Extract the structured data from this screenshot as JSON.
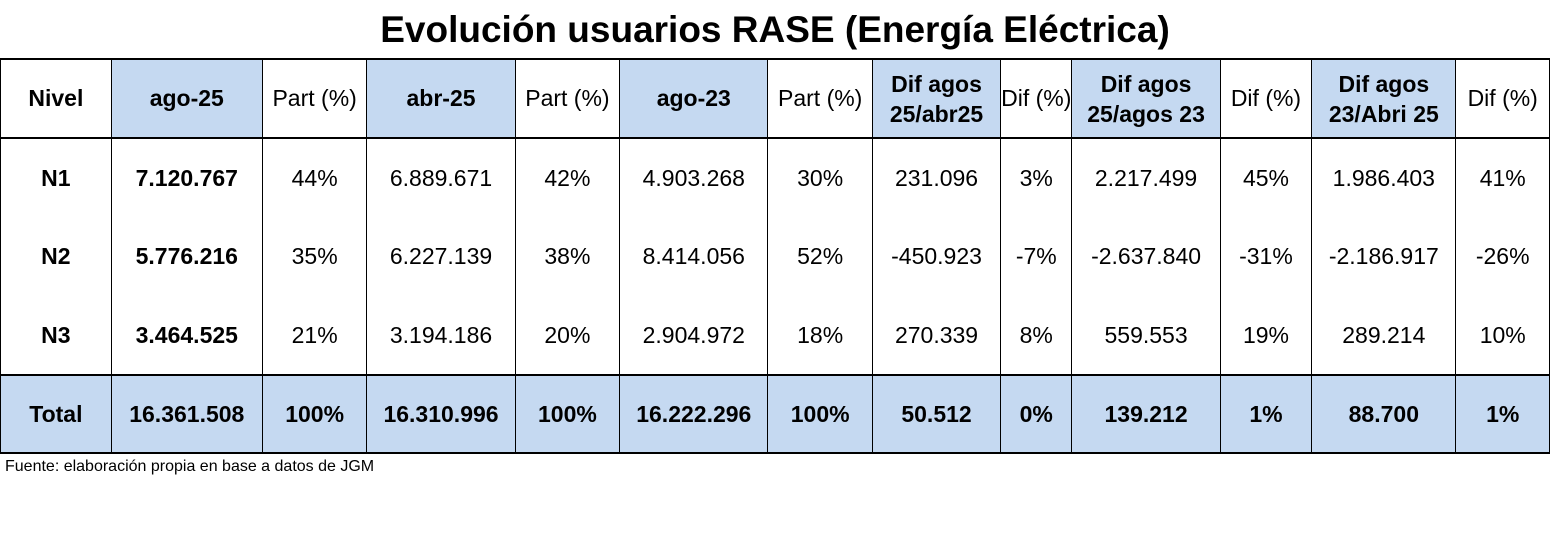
{
  "title": "Evolución usuarios RASE (Energía Eléctrica)",
  "source": "Fuente: elaboración propia en base a datos de JGM",
  "colors": {
    "highlight": "#c5d9f1"
  },
  "chart_data": {
    "type": "table",
    "title": "Evolución usuarios RASE (Energía Eléctrica)",
    "columns": [
      {
        "line1": "Nivel",
        "line2": ""
      },
      {
        "line1": "ago-25",
        "line2": ""
      },
      {
        "line1": "Part (%)",
        "line2": ""
      },
      {
        "line1": "abr-25",
        "line2": ""
      },
      {
        "line1": "Part (%)",
        "line2": ""
      },
      {
        "line1": "ago-23",
        "line2": ""
      },
      {
        "line1": "Part (%)",
        "line2": ""
      },
      {
        "line1": "Dif  agos",
        "line2": "25/abr25"
      },
      {
        "line1": "Dif  (%)",
        "line2": ""
      },
      {
        "line1": "Dif  agos",
        "line2": "25/agos 23"
      },
      {
        "line1": "Dif  (%)",
        "line2": ""
      },
      {
        "line1": "Dif  agos",
        "line2": "23/Abri 25"
      },
      {
        "line1": "Dif  (%)",
        "line2": ""
      }
    ],
    "rows": [
      [
        "N1",
        "7.120.767",
        "44%",
        "6.889.671",
        "42%",
        "4.903.268",
        "30%",
        "231.096",
        "3%",
        "2.217.499",
        "45%",
        "1.986.403",
        "41%"
      ],
      [
        "N2",
        "5.776.216",
        "35%",
        "6.227.139",
        "38%",
        "8.414.056",
        "52%",
        "-450.923",
        "-7%",
        "-2.637.840",
        "-31%",
        "-2.186.917",
        "-26%"
      ],
      [
        "N3",
        "3.464.525",
        "21%",
        "3.194.186",
        "20%",
        "2.904.972",
        "18%",
        "270.339",
        "8%",
        "559.553",
        "19%",
        "289.214",
        "10%"
      ],
      [
        "Total",
        "16.361.508",
        "100%",
        "16.310.996",
        "100%",
        "16.222.296",
        "100%",
        "50.512",
        "0%",
        "139.212",
        "1%",
        "88.700",
        "1%"
      ]
    ]
  }
}
